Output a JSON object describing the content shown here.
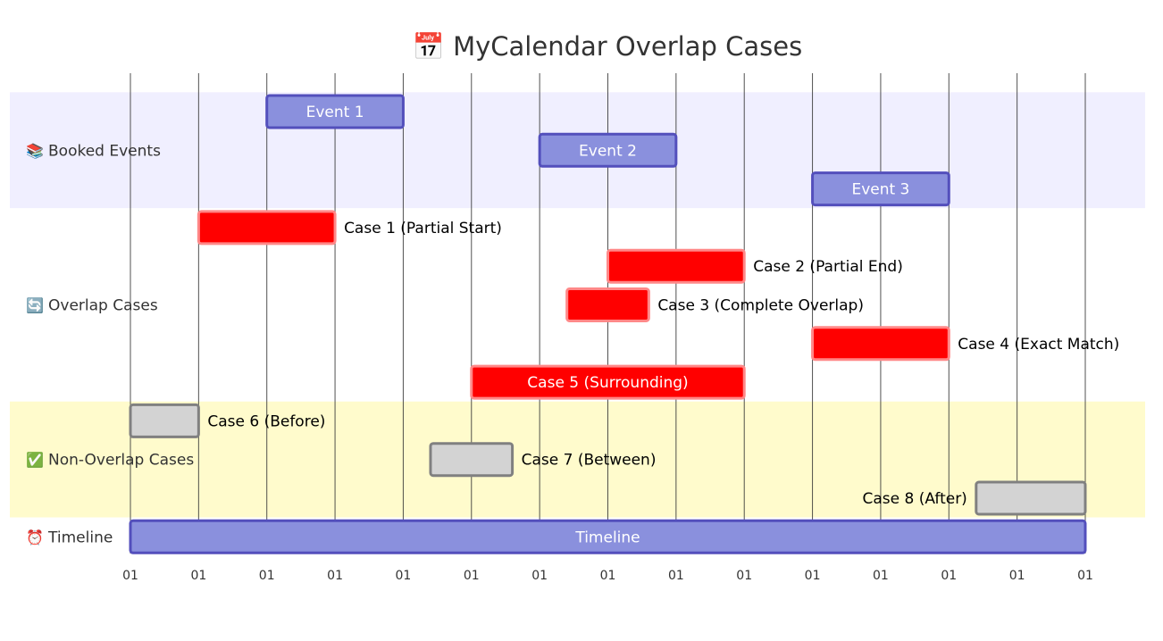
{
  "chart_data": {
    "type": "gantt",
    "title": "📅 MyCalendar Overlap Cases",
    "x_ticks": [
      "01",
      "01",
      "01",
      "01",
      "01",
      "01",
      "01",
      "01",
      "01",
      "01",
      "01",
      "01",
      "01",
      "01",
      "01"
    ],
    "xlim": [
      0,
      14
    ],
    "grid": true,
    "sections": [
      {
        "name": "Booked Events",
        "icon": "📚",
        "color": "#f0efff",
        "tasks": [
          {
            "label": "Event 1",
            "start": 2,
            "end": 4,
            "style": "booked"
          },
          {
            "label": "Event 2",
            "start": 6,
            "end": 8,
            "style": "booked"
          },
          {
            "label": "Event 3",
            "start": 10,
            "end": 12,
            "style": "booked"
          }
        ]
      },
      {
        "name": "Overlap Cases",
        "icon": "🔄",
        "color": "#ffffff",
        "tasks": [
          {
            "label": "Case 1 (Partial Start)",
            "start": 1,
            "end": 3,
            "style": "overlap"
          },
          {
            "label": "Case 2 (Partial End)",
            "start": 7,
            "end": 9,
            "style": "overlap"
          },
          {
            "label": "Case 3 (Complete Overlap)",
            "start": 6.4,
            "end": 7.6,
            "style": "overlap"
          },
          {
            "label": "Case 4 (Exact Match)",
            "start": 10,
            "end": 12,
            "style": "overlap"
          },
          {
            "label": "Case 5 (Surrounding)",
            "start": 5,
            "end": 9,
            "style": "overlap"
          }
        ]
      },
      {
        "name": "Non-Overlap Cases",
        "icon": "✅",
        "color": "#fffbcc",
        "tasks": [
          {
            "label": "Case 6 (Before)",
            "start": 0,
            "end": 1,
            "style": "nonoverlap"
          },
          {
            "label": "Case 7 (Between)",
            "start": 4.4,
            "end": 5.6,
            "style": "nonoverlap"
          },
          {
            "label": "Case 8 (After)",
            "start": 12.4,
            "end": 14,
            "style": "nonoverlap"
          }
        ]
      },
      {
        "name": "Timeline",
        "icon": "⏰",
        "color": "#ffffff",
        "tasks": [
          {
            "label": "Timeline",
            "start": 0,
            "end": 14,
            "style": "booked"
          }
        ]
      }
    ],
    "styles": {
      "booked": {
        "fill": "#8a90dd",
        "stroke": "#534fbc",
        "text": "#ffffff"
      },
      "overlap": {
        "fill": "#ff0000",
        "stroke": "#ff8888",
        "text": "#ffffff"
      },
      "nonoverlap": {
        "fill": "#d3d3d3",
        "stroke": "#808080",
        "text": "#000000"
      }
    }
  }
}
